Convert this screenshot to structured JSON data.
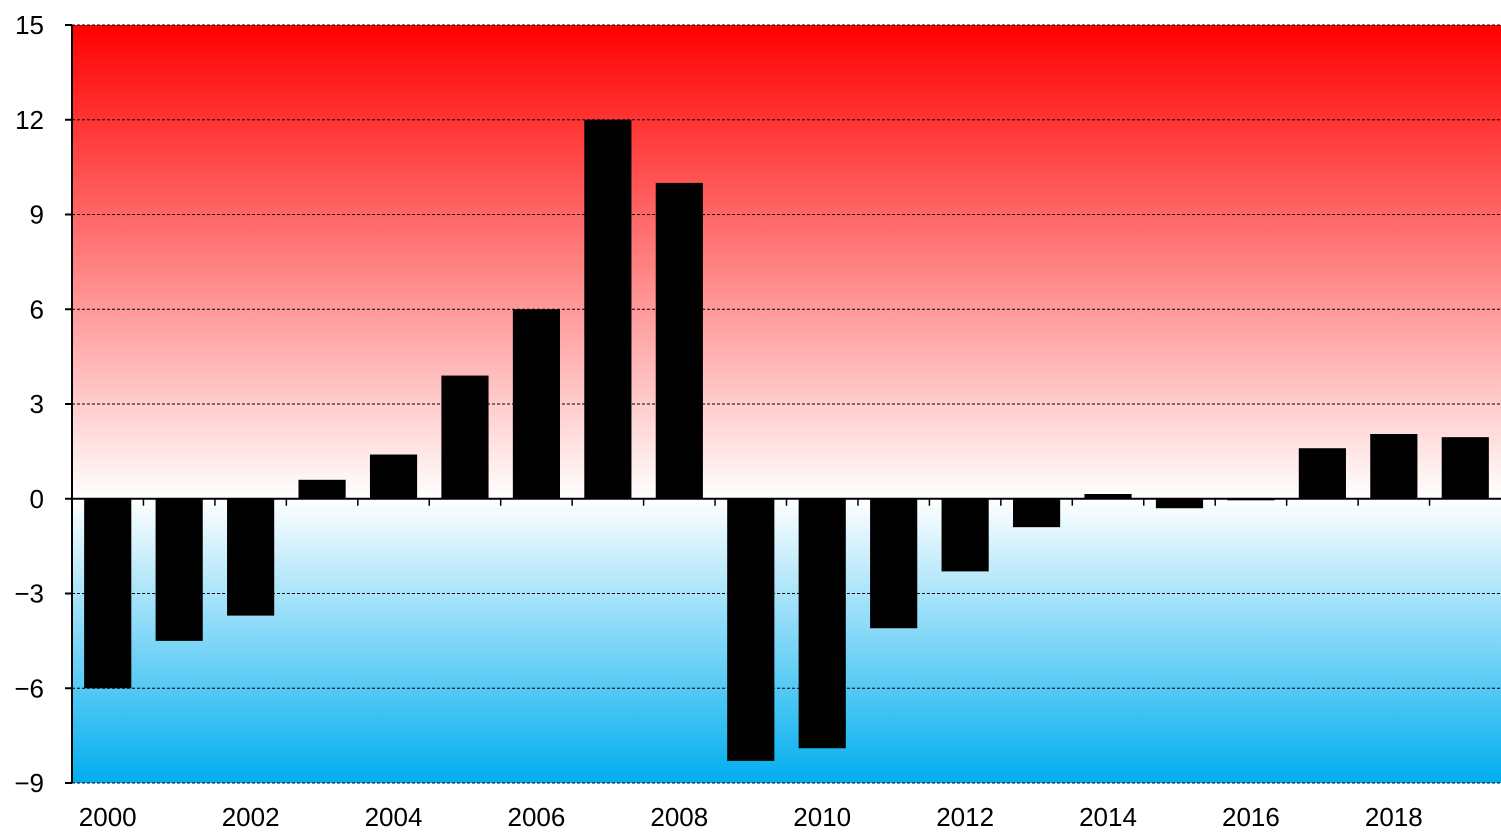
{
  "chart_data": {
    "type": "bar",
    "title": "",
    "xlabel": "",
    "ylabel": "",
    "categories": [
      "2000",
      "2001",
      "2002",
      "2003",
      "2004",
      "2005",
      "2006",
      "2007",
      "2008",
      "2009",
      "2010",
      "2011",
      "2012",
      "2013",
      "2014",
      "2015",
      "2016",
      "2017",
      "2018",
      "2019"
    ],
    "values": [
      -6.0,
      -4.5,
      -3.7,
      0.6,
      1.4,
      3.9,
      6.0,
      12.0,
      10.0,
      -8.3,
      -7.9,
      -4.1,
      -2.3,
      -0.9,
      0.15,
      -0.3,
      -0.05,
      1.6,
      2.05,
      1.95
    ],
    "ylim": [
      -9,
      15
    ],
    "y_ticks": [
      "15",
      "12",
      "9",
      "6",
      "3",
      "0",
      "−3",
      "−6",
      "−9"
    ],
    "x_tick_labels": [
      "2000",
      "2002",
      "2004",
      "2006",
      "2008",
      "2010",
      "2012",
      "2014",
      "2016",
      "2018"
    ],
    "grid": true,
    "bar_color": "#000000",
    "background_gradient": {
      "top": "#ff0000",
      "zero": "#ffffff",
      "bottom": "#00aeef"
    }
  }
}
